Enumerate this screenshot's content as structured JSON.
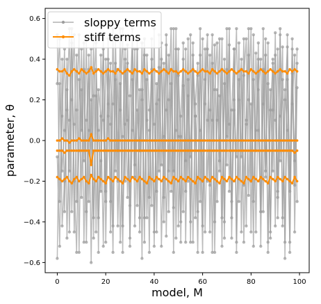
{
  "chart_data": {
    "type": "line",
    "xlabel": "model, M",
    "ylabel": "parameter, θ",
    "xlim": [
      -5,
      104
    ],
    "ylim": [
      -0.65,
      0.65
    ],
    "xticks": [
      0,
      20,
      40,
      60,
      80,
      100
    ],
    "yticks": [
      -0.6,
      -0.4,
      -0.2,
      0.0,
      0.2,
      0.4,
      0.6
    ],
    "xtick_labels": [
      "0",
      "20",
      "40",
      "60",
      "80",
      "100"
    ],
    "ytick_labels": [
      "−0.6",
      "−0.4",
      "−0.2",
      "0.0",
      "0.2",
      "0.4",
      "0.6"
    ],
    "legend": {
      "placement": "top-left",
      "entries": [
        {
          "label": "sloppy terms",
          "color": "#9e9e9e"
        },
        {
          "label": "stiff terms",
          "color": "#ff8c00"
        }
      ]
    },
    "x": [
      0,
      1,
      2,
      3,
      4,
      5,
      6,
      7,
      8,
      9,
      10,
      11,
      12,
      13,
      14,
      15,
      16,
      17,
      18,
      19,
      20,
      21,
      22,
      23,
      24,
      25,
      26,
      27,
      28,
      29,
      30,
      31,
      32,
      33,
      34,
      35,
      36,
      37,
      38,
      39,
      40,
      41,
      42,
      43,
      44,
      45,
      46,
      47,
      48,
      49,
      50,
      51,
      52,
      53,
      54,
      55,
      56,
      57,
      58,
      59,
      60,
      61,
      62,
      63,
      64,
      65,
      66,
      67,
      68,
      69,
      70,
      71,
      72,
      73,
      74,
      75,
      76,
      77,
      78,
      79,
      80,
      81,
      82,
      83,
      84,
      85,
      86,
      87,
      88,
      89,
      90,
      91,
      92,
      93,
      94,
      95,
      96,
      97,
      98,
      99
    ],
    "series": [
      {
        "group": "stiff",
        "values": [
          0.35,
          0.34,
          0.34,
          0.35,
          0.33,
          0.32,
          0.34,
          0.35,
          0.34,
          0.33,
          0.35,
          0.34,
          0.33,
          0.34,
          0.36,
          0.33,
          0.34,
          0.35,
          0.34,
          0.33,
          0.34,
          0.35,
          0.34,
          0.34,
          0.33,
          0.35,
          0.34,
          0.33,
          0.34,
          0.35,
          0.34,
          0.33,
          0.35,
          0.34,
          0.34,
          0.33,
          0.35,
          0.34,
          0.33,
          0.34,
          0.35,
          0.34,
          0.33,
          0.34,
          0.35,
          0.34,
          0.33,
          0.35,
          0.34,
          0.34,
          0.33,
          0.34,
          0.35,
          0.34,
          0.33,
          0.34,
          0.35,
          0.34,
          0.33,
          0.34,
          0.35,
          0.34,
          0.34,
          0.33,
          0.35,
          0.34,
          0.33,
          0.34,
          0.35,
          0.34,
          0.33,
          0.34,
          0.35,
          0.34,
          0.33,
          0.34,
          0.35,
          0.34,
          0.34,
          0.33,
          0.35,
          0.34,
          0.33,
          0.34,
          0.35,
          0.34,
          0.33,
          0.34,
          0.35,
          0.34,
          0.33,
          0.34,
          0.35,
          0.34,
          0.34,
          0.33,
          0.35,
          0.34,
          0.35,
          0.34
        ]
      },
      {
        "group": "stiff",
        "values": [
          0.0,
          0.0,
          0.01,
          0.0,
          0.0,
          -0.01,
          0.0,
          0.0,
          0.0,
          0.01,
          0.0,
          0.0,
          0.0,
          0.0,
          0.03,
          0.0,
          0.0,
          0.0,
          0.0,
          0.0,
          0.0,
          0.01,
          0.0,
          0.0,
          0.0,
          0.0,
          0.0,
          0.0,
          0.0,
          0.0,
          0.0,
          0.0,
          0.0,
          0.0,
          0.0,
          0.0,
          0.0,
          0.0,
          0.0,
          0.0,
          0.0,
          0.0,
          0.0,
          0.0,
          0.0,
          0.0,
          0.0,
          0.0,
          0.0,
          0.0,
          0.0,
          0.0,
          0.0,
          0.0,
          0.0,
          0.0,
          0.0,
          0.0,
          0.0,
          0.0,
          0.0,
          0.0,
          0.0,
          0.0,
          0.0,
          0.0,
          0.0,
          0.0,
          0.0,
          0.0,
          0.0,
          0.0,
          0.0,
          0.0,
          0.0,
          0.0,
          0.0,
          0.0,
          0.0,
          0.0,
          0.0,
          0.0,
          0.0,
          0.0,
          0.0,
          0.0,
          0.0,
          0.0,
          0.0,
          0.0,
          0.0,
          0.0,
          0.0,
          0.0,
          0.0,
          0.0,
          0.0,
          0.0,
          0.0,
          0.0
        ]
      },
      {
        "group": "stiff",
        "values": [
          -0.05,
          -0.05,
          -0.05,
          -0.06,
          -0.05,
          -0.05,
          -0.05,
          -0.05,
          -0.05,
          -0.05,
          -0.05,
          -0.05,
          -0.05,
          -0.05,
          -0.12,
          -0.05,
          -0.05,
          -0.05,
          -0.05,
          -0.05,
          -0.05,
          -0.05,
          -0.05,
          -0.05,
          -0.05,
          -0.05,
          -0.05,
          -0.05,
          -0.05,
          -0.05,
          -0.05,
          -0.05,
          -0.05,
          -0.05,
          -0.05,
          -0.05,
          -0.05,
          -0.05,
          -0.05,
          -0.05,
          -0.05,
          -0.05,
          -0.05,
          -0.05,
          -0.05,
          -0.05,
          -0.05,
          -0.05,
          -0.05,
          -0.05,
          -0.05,
          -0.05,
          -0.05,
          -0.05,
          -0.05,
          -0.05,
          -0.05,
          -0.05,
          -0.05,
          -0.05,
          -0.05,
          -0.05,
          -0.05,
          -0.05,
          -0.05,
          -0.05,
          -0.05,
          -0.05,
          -0.05,
          -0.05,
          -0.05,
          -0.05,
          -0.05,
          -0.05,
          -0.05,
          -0.05,
          -0.05,
          -0.05,
          -0.05,
          -0.05,
          -0.05,
          -0.05,
          -0.05,
          -0.05,
          -0.05,
          -0.05,
          -0.05,
          -0.05,
          -0.05,
          -0.05,
          -0.05,
          -0.05,
          -0.05,
          -0.05,
          -0.05,
          -0.05,
          -0.05,
          -0.05,
          -0.06,
          -0.05
        ]
      },
      {
        "group": "stiff",
        "values": [
          -0.18,
          -0.19,
          -0.2,
          -0.19,
          -0.18,
          -0.2,
          -0.21,
          -0.19,
          -0.18,
          -0.2,
          -0.19,
          -0.18,
          -0.2,
          -0.21,
          -0.17,
          -0.19,
          -0.2,
          -0.18,
          -0.19,
          -0.2,
          -0.21,
          -0.18,
          -0.19,
          -0.2,
          -0.18,
          -0.19,
          -0.2,
          -0.21,
          -0.18,
          -0.19,
          -0.2,
          -0.18,
          -0.19,
          -0.2,
          -0.18,
          -0.19,
          -0.2,
          -0.21,
          -0.18,
          -0.19,
          -0.2,
          -0.18,
          -0.19,
          -0.2,
          -0.18,
          -0.19,
          -0.2,
          -0.21,
          -0.18,
          -0.19,
          -0.2,
          -0.18,
          -0.19,
          -0.2,
          -0.18,
          -0.19,
          -0.2,
          -0.21,
          -0.18,
          -0.19,
          -0.2,
          -0.18,
          -0.19,
          -0.2,
          -0.18,
          -0.19,
          -0.2,
          -0.21,
          -0.18,
          -0.19,
          -0.2,
          -0.18,
          -0.19,
          -0.2,
          -0.18,
          -0.19,
          -0.2,
          -0.21,
          -0.18,
          -0.19,
          -0.2,
          -0.18,
          -0.19,
          -0.2,
          -0.18,
          -0.19,
          -0.2,
          -0.21,
          -0.18,
          -0.19,
          -0.2,
          -0.18,
          -0.19,
          -0.2,
          -0.18,
          -0.19,
          -0.2,
          -0.21,
          -0.18,
          -0.2
        ]
      },
      {
        "group": "sloppy",
        "values": [
          0.52,
          -0.3,
          0.12,
          0.45,
          -0.48,
          0.1,
          0.55,
          -0.2,
          -0.55,
          0.3,
          0.05,
          0.48,
          -0.35,
          0.42,
          -0.1,
          0.5,
          -0.45,
          0.25,
          0.12,
          -0.52,
          0.4,
          0.18,
          -0.3,
          0.55,
          -0.15,
          0.35,
          -0.5,
          0.02,
          0.45,
          -0.28,
          0.22,
          0.5,
          -0.42,
          0.15,
          -0.05,
          0.48,
          -0.38,
          0.3,
          -0.55,
          0.4,
          0.08,
          -0.25,
          0.52,
          -0.12,
          0.38,
          -0.47,
          0.2,
          0.55,
          -0.33,
          0.05,
          0.45,
          -0.5,
          0.27,
          -0.1,
          0.5,
          -0.4,
          0.35,
          0.12,
          -0.55,
          0.42,
          -0.2,
          0.3,
          0.52,
          -0.45,
          0.1,
          0.47,
          -0.3,
          0.22,
          -0.52,
          0.4,
          0.02,
          0.55,
          -0.38,
          0.15,
          -0.08,
          0.48,
          -0.45,
          0.32,
          0.5,
          -0.27,
          0.18,
          -0.52,
          0.43,
          0.05,
          -0.35,
          0.55,
          -0.15,
          0.28,
          -0.48,
          0.4,
          0.1,
          -0.25,
          0.52,
          -0.42,
          0.2,
          0.46,
          -0.55,
          0.33,
          -0.1,
          0.45
        ]
      },
      {
        "group": "sloppy",
        "values": [
          -0.58,
          0.28,
          -0.15,
          0.05,
          0.4,
          -0.45,
          0.2,
          0.52,
          -0.3,
          -0.05,
          0.45,
          -0.5,
          0.1,
          0.35,
          -0.6,
          0.22,
          0.48,
          -0.38,
          -0.1,
          0.5,
          -0.25,
          0.4,
          0.08,
          -0.55,
          0.3,
          -0.42,
          0.15,
          0.55,
          -0.2,
          0.38,
          -0.48,
          0.05,
          0.45,
          -0.32,
          0.25,
          -0.58,
          0.42,
          0.1,
          -0.28,
          0.5,
          -0.45,
          0.18,
          0.36,
          -0.52,
          0.02,
          0.47,
          -0.35,
          0.28,
          -0.15,
          0.55,
          -0.42,
          0.12,
          0.4,
          -0.5,
          0.22,
          -0.08,
          0.48,
          -0.38,
          0.32,
          0.05,
          -0.55,
          0.45,
          -0.2,
          0.15,
          0.52,
          -0.4,
          0.25,
          -0.1,
          0.5,
          -0.48,
          0.35,
          0.08,
          -0.3,
          0.45,
          -0.55,
          0.2,
          0.4,
          -0.22,
          0.1,
          0.55,
          -0.45,
          0.3,
          -0.05,
          0.48,
          -0.35,
          0.18,
          0.42,
          -0.5,
          0.25,
          -0.15,
          0.53,
          -0.38,
          0.12,
          0.46,
          -0.58,
          0.3,
          -0.2,
          0.5,
          -0.45,
          0.26
        ]
      },
      {
        "group": "sloppy",
        "values": [
          0.28,
          0.5,
          -0.42,
          -0.2,
          0.15,
          0.55,
          -0.35,
          0.08,
          0.42,
          -0.55,
          0.25,
          -0.1,
          0.5,
          -0.3,
          0.2,
          -0.48,
          0.35,
          0.05,
          -0.25,
          0.45,
          -0.5,
          0.12,
          0.38,
          -0.42,
          0.52,
          -0.05,
          0.28,
          -0.55,
          0.4,
          0.1,
          -0.32,
          0.55,
          -0.18,
          0.45,
          -0.45,
          0.2,
          0.5,
          -0.38,
          0.05,
          0.35,
          -0.52,
          0.28,
          -0.15,
          0.48,
          -0.4,
          0.15,
          0.42,
          -0.25,
          0.55,
          -0.48,
          0.32,
          0.02,
          -0.35,
          0.45,
          -0.2,
          0.52,
          -0.5,
          0.18,
          0.38,
          -0.3,
          0.5,
          -0.45,
          0.1,
          0.42,
          -0.55,
          0.25,
          0.48,
          -0.15,
          0.35,
          -0.4,
          0.55,
          -0.25,
          0.15,
          0.45,
          -0.5,
          0.3,
          -0.08,
          0.5,
          -0.42,
          0.2,
          0.55,
          -0.3,
          0.05,
          0.4,
          -0.52,
          0.35,
          -0.18,
          0.48,
          -0.45,
          0.15,
          0.42,
          -0.28,
          0.55,
          -0.38,
          0.25,
          0.05,
          -0.5,
          0.45,
          -0.22,
          0.38
        ]
      },
      {
        "group": "sloppy",
        "values": [
          -0.08,
          -0.52,
          0.4,
          -0.35,
          0.25,
          -0.15,
          0.48,
          -0.45,
          0.15,
          0.52,
          -0.28,
          0.35,
          -0.5,
          0.05,
          0.45,
          -0.38,
          0.22,
          -0.55,
          0.42,
          0.1,
          -0.3,
          0.5,
          -0.45,
          0.18,
          0.38,
          -0.2,
          0.55,
          -0.42,
          0.08,
          0.47,
          -0.52,
          0.3,
          -0.12,
          0.5,
          -0.38,
          0.25,
          -0.5,
          0.42,
          0.15,
          -0.32,
          0.55,
          -0.45,
          0.2,
          0.4,
          -0.28,
          0.52,
          -0.15,
          0.35,
          -0.55,
          0.45,
          0.02,
          -0.4,
          0.48,
          -0.25,
          0.3,
          -0.5,
          0.42,
          0.12,
          -0.35,
          0.55,
          -0.42,
          0.18,
          0.45,
          -0.22,
          0.38,
          -0.55,
          0.1,
          0.5,
          -0.38,
          0.28,
          -0.12,
          0.47,
          -0.48,
          0.2,
          0.55,
          -0.3,
          0.35,
          -0.5,
          0.08,
          0.42,
          -0.2,
          0.52,
          -0.45,
          0.25,
          0.4,
          -0.35,
          0.5,
          -0.55,
          0.15,
          0.38,
          -0.42,
          0.45,
          -0.1,
          0.3,
          -0.5,
          0.52,
          -0.25,
          0.18,
          0.42,
          -0.3
        ]
      }
    ]
  }
}
